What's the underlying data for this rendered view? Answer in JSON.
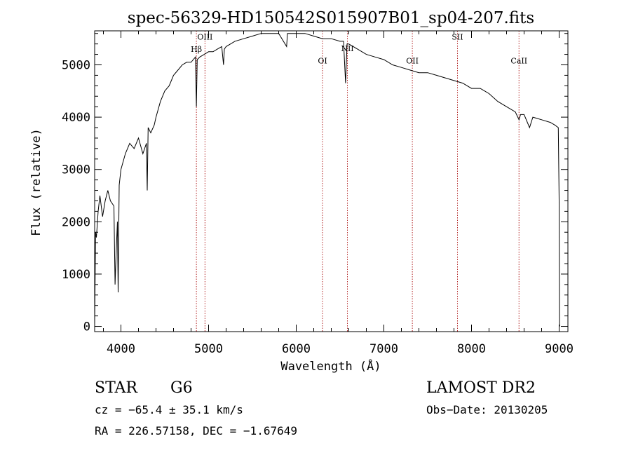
{
  "chart_data": {
    "type": "line",
    "title": "spec-56329-HD150542S015907B01_sp04-207.fits",
    "xlabel": "Wavelength (Å)",
    "ylabel": "Flux (relative)",
    "xlim": [
      3700,
      9100
    ],
    "ylim": [
      -100,
      5650
    ],
    "x_ticks": [
      4000,
      5000,
      6000,
      7000,
      8000,
      9000
    ],
    "y_ticks": [
      0,
      1000,
      2000,
      3000,
      4000,
      5000
    ],
    "grid": false,
    "line_color": "#000000",
    "marker_color": "#b22222",
    "spectral_lines": [
      {
        "label": "Hβ",
        "wavelength": 4861,
        "label_flux": 5250
      },
      {
        "label": "OIII",
        "wavelength": 4959,
        "label_flux": 5480
      },
      {
        "label": "OI",
        "wavelength": 6300,
        "label_flux": 5030
      },
      {
        "label": "NII",
        "wavelength": 6584,
        "label_flux": 5260
      },
      {
        "label": "OII",
        "wavelength": 7325,
        "label_flux": 5030
      },
      {
        "label": "SII",
        "wavelength": 7840,
        "label_flux": 5480
      },
      {
        "label": "CaII",
        "wavelength": 8542,
        "label_flux": 5030
      }
    ],
    "series": [
      {
        "x": [
          3700,
          3710,
          3720,
          3740,
          3760,
          3790,
          3820,
          3850,
          3880,
          3920,
          3933,
          3945,
          3960,
          3968,
          3980,
          4000,
          4050,
          4100,
          4150,
          4200,
          4250,
          4290,
          4300,
          4310,
          4340,
          4380,
          4400,
          4450,
          4500,
          4550,
          4600,
          4650,
          4700,
          4750,
          4800,
          4850,
          4861,
          4870,
          4900,
          4950,
          5000,
          5050,
          5100,
          5150,
          5170,
          5180,
          5200,
          5250,
          5300,
          5400,
          5500,
          5600,
          5700,
          5800,
          5890,
          5900,
          6000,
          6100,
          6200,
          6300,
          6400,
          6500,
          6540,
          6563,
          6580,
          6600,
          6700,
          6800,
          6900,
          7000,
          7100,
          7200,
          7300,
          7400,
          7500,
          7600,
          7700,
          7800,
          7900,
          8000,
          8100,
          8200,
          8300,
          8400,
          8500,
          8542,
          8560,
          8600,
          8662,
          8700,
          8800,
          8900,
          8950,
          8990,
          9000,
          9005
        ],
        "y": [
          0,
          1800,
          1700,
          2200,
          2500,
          2100,
          2400,
          2600,
          2400,
          2300,
          800,
          1400,
          2000,
          650,
          2700,
          3000,
          3300,
          3500,
          3400,
          3600,
          3300,
          3500,
          2600,
          3800,
          3700,
          3850,
          4000,
          4300,
          4500,
          4600,
          4800,
          4900,
          5000,
          5050,
          5050,
          5150,
          4200,
          5100,
          5150,
          5200,
          5250,
          5250,
          5300,
          5350,
          5000,
          5300,
          5350,
          5400,
          5450,
          5500,
          5550,
          5600,
          5600,
          5600,
          5350,
          5600,
          5600,
          5600,
          5550,
          5500,
          5500,
          5450,
          5450,
          4650,
          5400,
          5400,
          5300,
          5200,
          5150,
          5100,
          5000,
          4950,
          4900,
          4850,
          4850,
          4800,
          4750,
          4700,
          4650,
          4550,
          4550,
          4450,
          4300,
          4200,
          4100,
          3950,
          4050,
          4050,
          3800,
          4000,
          3950,
          3900,
          3850,
          3800,
          2400,
          0
        ]
      }
    ]
  },
  "footer": {
    "obj_type": "STAR",
    "subclass": "G6",
    "survey": "LAMOST DR2",
    "cz": "cz = −65.4 ± 35.1 km/s",
    "obs_date": "Obs−Date: 20130205",
    "radec": "RA = 226.57158, DEC =  −1.67649"
  }
}
